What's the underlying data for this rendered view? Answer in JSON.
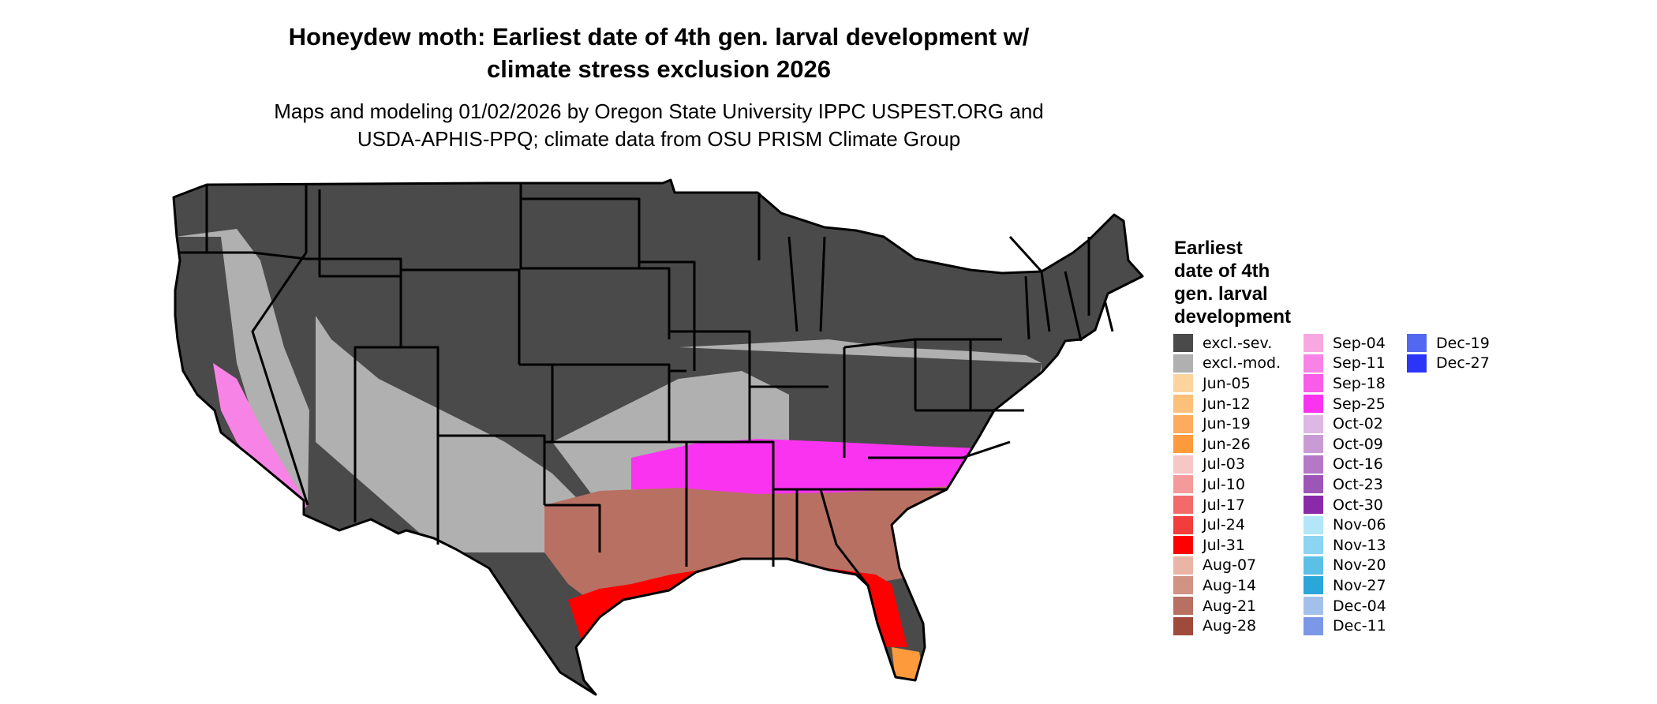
{
  "title": {
    "line1": "Honeydew moth: Earliest date of 4th gen. larval development w/",
    "line2": "climate stress exclusion 2026"
  },
  "subtitle": {
    "line1": "Maps and modeling 01/02/2026 by Oregon State University IPPC USPEST.ORG and",
    "line2": "USDA-APHIS-PPQ; climate data from OSU PRISM Climate Group"
  },
  "map": {
    "region": "Contiguous United States",
    "state_borders": true,
    "dominant_categories": {
      "north": "excl.-sev.",
      "central_band": "excl.-mod.",
      "south_interior": "Aug-21",
      "gulf_coast": "Jul-31",
      "southern_tip": "Jun-26"
    }
  },
  "legend": {
    "title": [
      "Earliest",
      "date of 4th",
      "gen. larval",
      "development"
    ],
    "columns": [
      [
        {
          "label": "excl.-sev.",
          "color": "#4a4a4a"
        },
        {
          "label": "excl.-mod.",
          "color": "#b0b0b0"
        },
        {
          "label": "Jun-05",
          "color": "#fdd49e"
        },
        {
          "label": "Jun-12",
          "color": "#fdc07a"
        },
        {
          "label": "Jun-19",
          "color": "#fcac5c"
        },
        {
          "label": "Jun-26",
          "color": "#fc9a3c"
        },
        {
          "label": "Jul-03",
          "color": "#f7c6c6"
        },
        {
          "label": "Jul-10",
          "color": "#f59a9a"
        },
        {
          "label": "Jul-17",
          "color": "#f46a6a"
        },
        {
          "label": "Jul-24",
          "color": "#f33c3c"
        },
        {
          "label": "Jul-31",
          "color": "#ff0000"
        },
        {
          "label": "Aug-07",
          "color": "#e9b5a6"
        },
        {
          "label": "Aug-14",
          "color": "#d19384"
        },
        {
          "label": "Aug-21",
          "color": "#b87062"
        },
        {
          "label": "Aug-28",
          "color": "#9f4a3a"
        }
      ],
      [
        {
          "label": "Sep-04",
          "color": "#f7a8e0"
        },
        {
          "label": "Sep-11",
          "color": "#f883e6"
        },
        {
          "label": "Sep-18",
          "color": "#f95de8"
        },
        {
          "label": "Sep-25",
          "color": "#fa33f0"
        },
        {
          "label": "Oct-02",
          "color": "#ddb8e4"
        },
        {
          "label": "Oct-09",
          "color": "#c99bd4"
        },
        {
          "label": "Oct-16",
          "color": "#b478c7"
        },
        {
          "label": "Oct-23",
          "color": "#9e55b8"
        },
        {
          "label": "Oct-30",
          "color": "#8a2aa8"
        },
        {
          "label": "Nov-06",
          "color": "#b3e6f8"
        },
        {
          "label": "Nov-13",
          "color": "#8bd4f2"
        },
        {
          "label": "Nov-20",
          "color": "#5cbfe6"
        },
        {
          "label": "Nov-27",
          "color": "#2aa6d9"
        },
        {
          "label": "Dec-04",
          "color": "#a2c0ea"
        },
        {
          "label": "Dec-11",
          "color": "#7a98e6"
        }
      ],
      [
        {
          "label": "Dec-19",
          "color": "#5368f0"
        },
        {
          "label": "Dec-27",
          "color": "#2a35f7"
        }
      ]
    ]
  }
}
